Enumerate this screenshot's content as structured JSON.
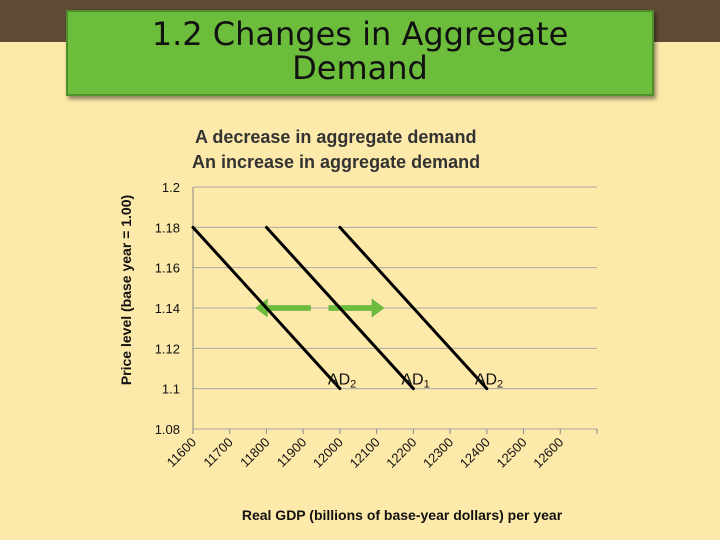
{
  "header": {
    "title_line1": "1.2 Changes in Aggregate",
    "title_line2": "Demand"
  },
  "colors": {
    "background": "#fde9a9",
    "top_bar": "#5e4a35",
    "title_box": "#6cbd3c",
    "arrow": "#6cbd3c",
    "curve": "#000000",
    "grid": "#a8a8a8"
  },
  "chart_data": {
    "type": "line",
    "title": [
      "A decrease in aggregate demand",
      "An increase in aggregate demand"
    ],
    "xlabel": "Real GDP (billions of base-year dollars) per year",
    "ylabel": "Price level (base year = 1.00)",
    "x_ticks": [
      "11600",
      "11700",
      "11800",
      "11900",
      "12000",
      "12100",
      "12200",
      "12300",
      "12400",
      "12500",
      "12600"
    ],
    "y_ticks": [
      "1.08",
      "1.1",
      "1.12",
      "1.14",
      "1.16",
      "1.18",
      "1.2"
    ],
    "xlim": [
      11600,
      12700
    ],
    "ylim": [
      1.08,
      1.2
    ],
    "grid": true,
    "series": [
      {
        "name": "AD2",
        "label_main": "AD",
        "label_sub": "2",
        "x": [
          11600,
          12000
        ],
        "y": [
          1.18,
          1.1
        ]
      },
      {
        "name": "AD1",
        "label_main": "AD",
        "label_sub": "1",
        "x": [
          11800,
          12200
        ],
        "y": [
          1.18,
          1.1
        ]
      },
      {
        "name": "AD2",
        "label_main": "AD",
        "label_sub": "2",
        "x": [
          12000,
          12400
        ],
        "y": [
          1.18,
          1.1
        ]
      }
    ],
    "arrows": [
      {
        "direction": "left",
        "from_x": 11920,
        "to_x": 11770,
        "y": 1.14
      },
      {
        "direction": "right",
        "from_x": 11970,
        "to_x": 12120,
        "y": 1.14
      }
    ]
  }
}
